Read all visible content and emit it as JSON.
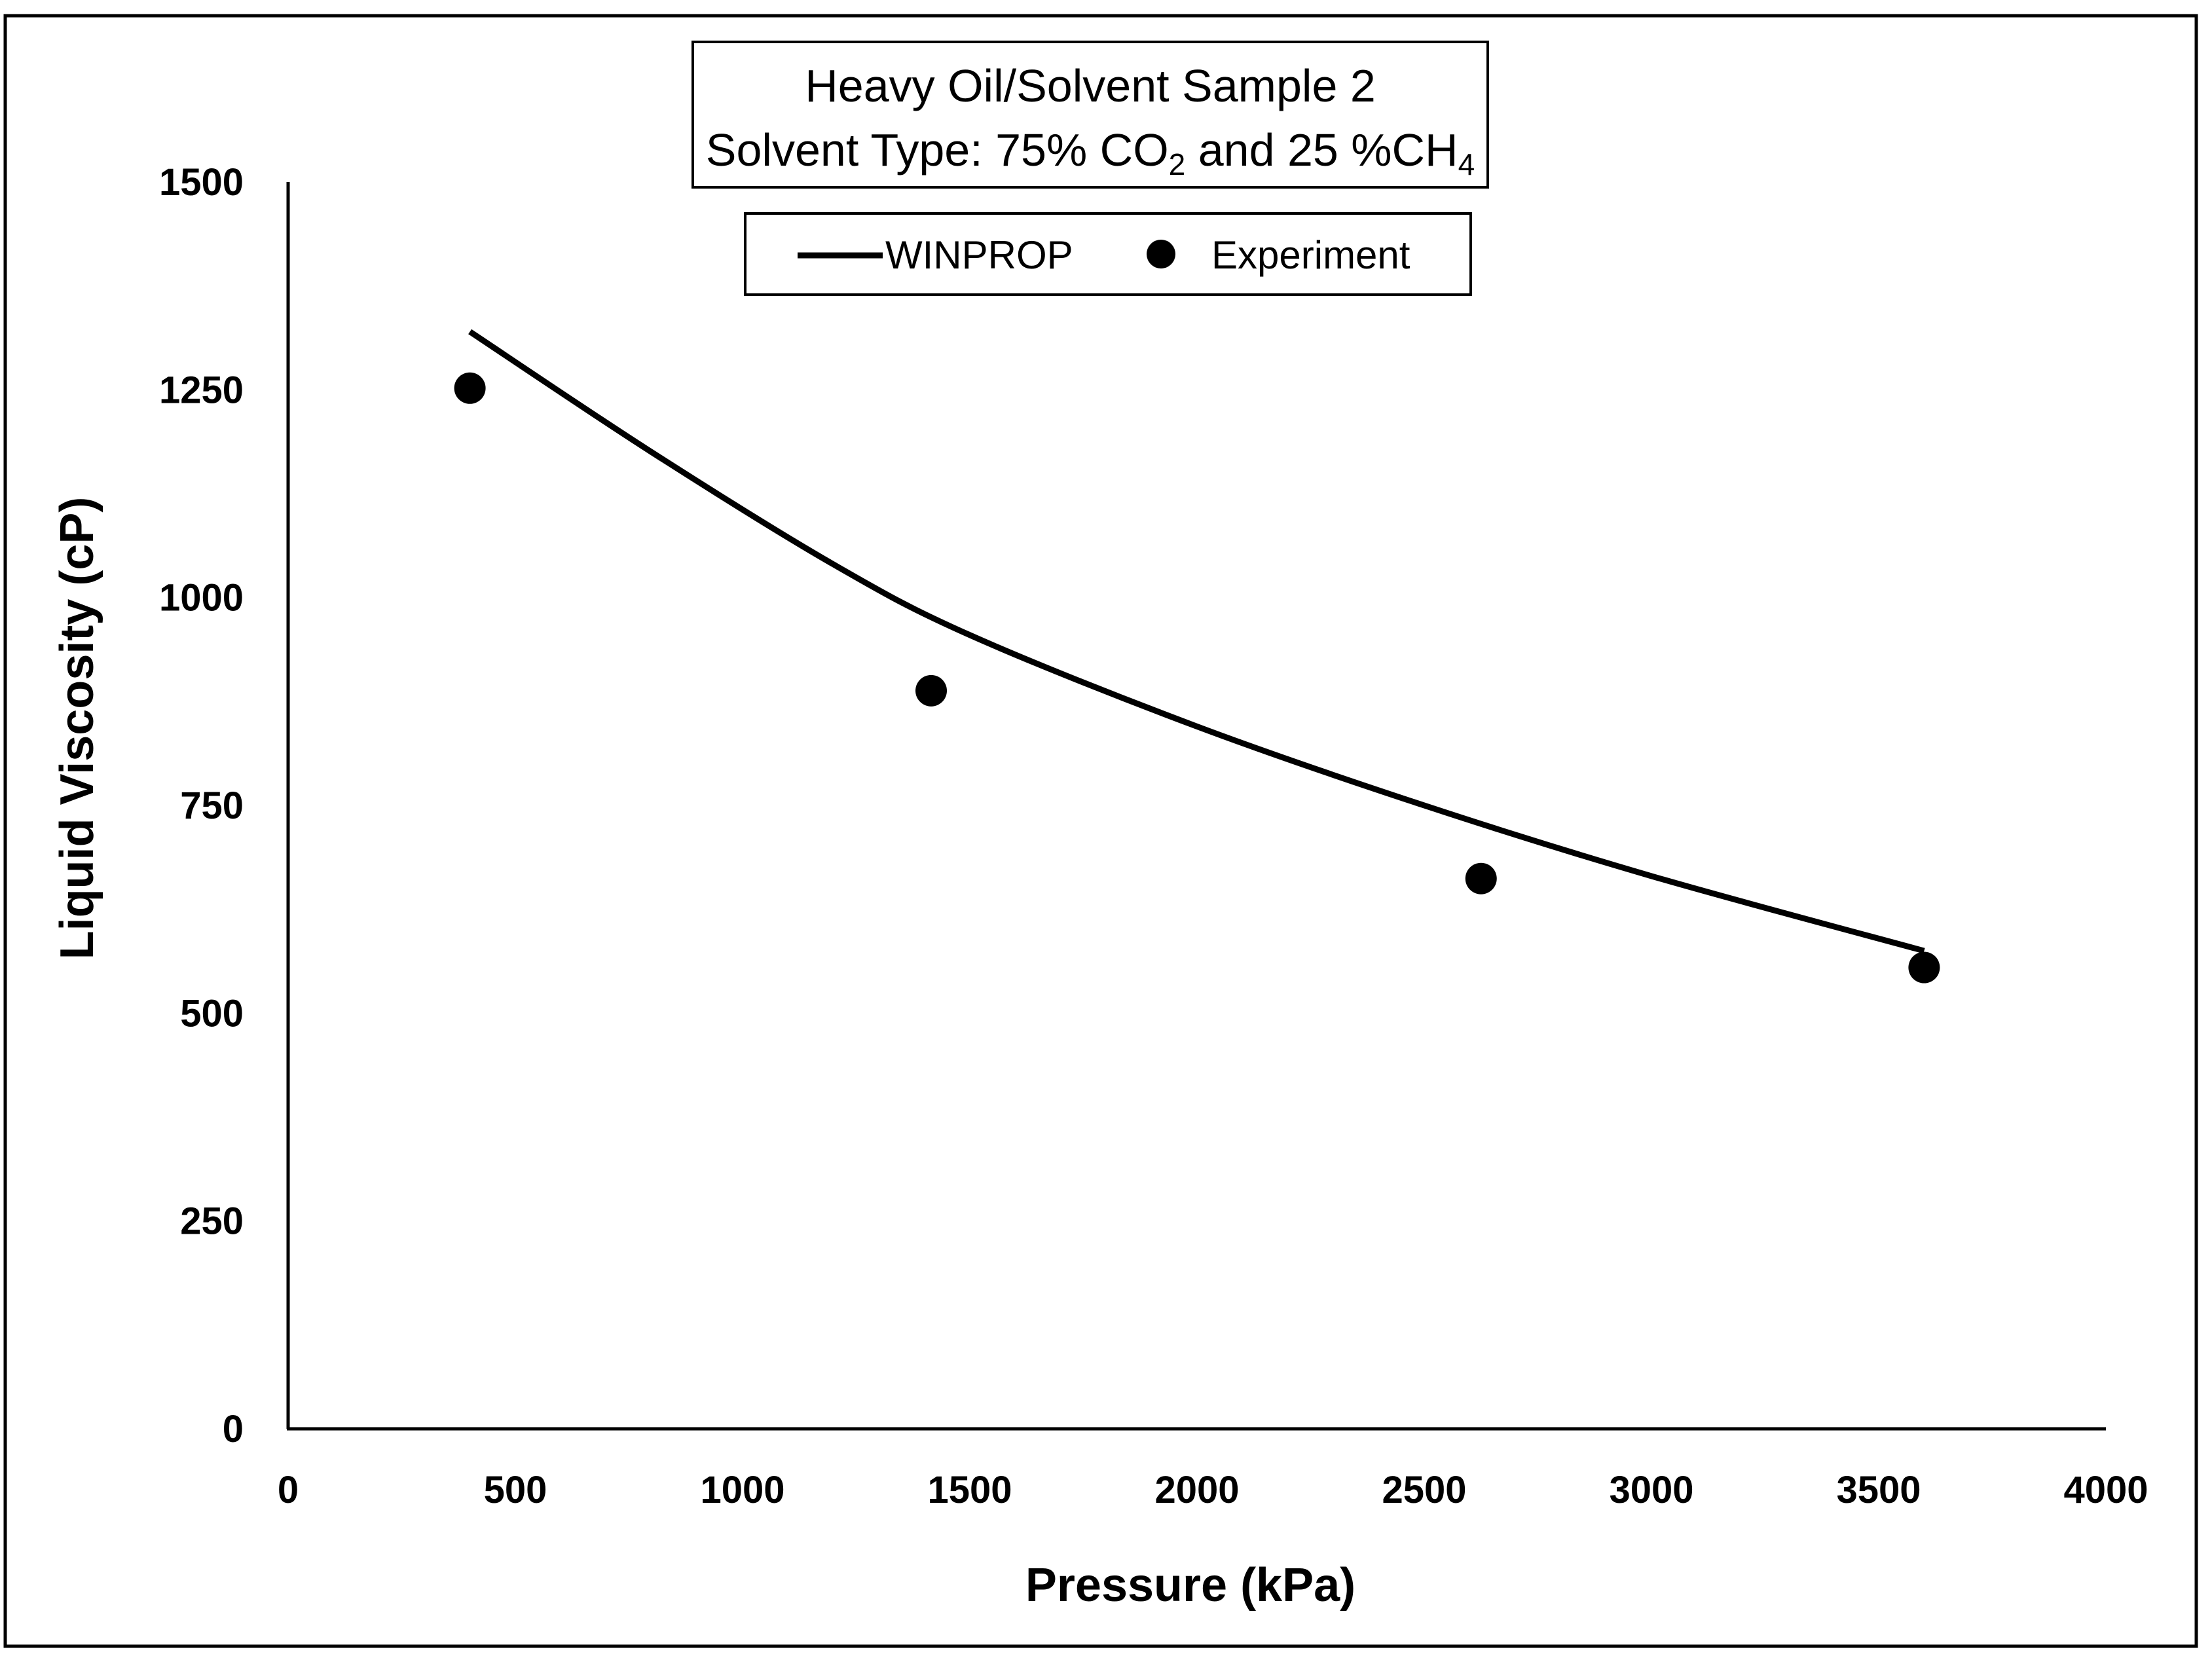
{
  "chart_data": {
    "type": "line",
    "title": {
      "line1": "Heavy Oil/Solvent Sample 2",
      "line2_prefix": "Solvent Type: 75% CO",
      "line2_sub1": "2",
      "line2_middle": " and 25 %CH",
      "line2_sub2": "4"
    },
    "xlabel": "Pressure (kPa)",
    "ylabel": "Liquid Viscosity (cP)",
    "xlim": [
      0,
      4000
    ],
    "ylim": [
      0,
      1500
    ],
    "x_ticks": [
      0,
      500,
      1000,
      1500,
      2000,
      2500,
      3000,
      3500,
      4000
    ],
    "y_ticks": [
      0,
      250,
      500,
      750,
      1000,
      1250,
      1500
    ],
    "grid": false,
    "legend_position": "top-center",
    "series": [
      {
        "name": "WINPROP",
        "kind": "line",
        "color": "#000000",
        "points": [
          {
            "x": 400,
            "y": 1320
          },
          {
            "x": 800,
            "y": 1175
          },
          {
            "x": 1200,
            "y": 1040
          },
          {
            "x": 1500,
            "y": 955
          },
          {
            "x": 2000,
            "y": 845
          },
          {
            "x": 2500,
            "y": 750
          },
          {
            "x": 3000,
            "y": 665
          },
          {
            "x": 3600,
            "y": 575
          }
        ]
      },
      {
        "name": "Experiment",
        "kind": "scatter",
        "color": "#000000",
        "points": [
          {
            "x": 400,
            "y": 1252
          },
          {
            "x": 1415,
            "y": 888
          },
          {
            "x": 2625,
            "y": 662
          },
          {
            "x": 3600,
            "y": 555
          }
        ]
      }
    ]
  }
}
